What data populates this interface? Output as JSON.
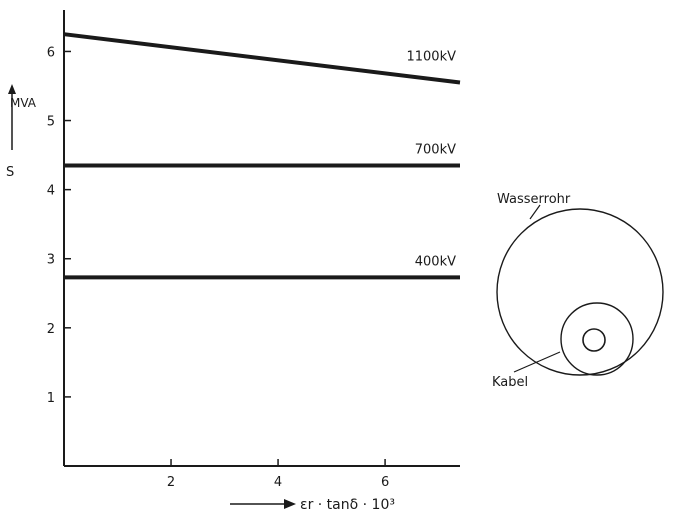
{
  "chart_data": {
    "type": "line",
    "title": "",
    "ylabel": "S",
    "yunit": "MVA",
    "xlabel": "εr · tanδ · 10³",
    "xlim": [
      0,
      7.4
    ],
    "ylim": [
      0,
      6.6
    ],
    "xticks": [
      2,
      4,
      6
    ],
    "yticks": [
      1,
      2,
      3,
      4,
      5,
      6
    ],
    "grid": false,
    "series": [
      {
        "name": "1100kV",
        "x": [
          0,
          7.4
        ],
        "y": [
          6.25,
          5.55
        ]
      },
      {
        "name": "700kV",
        "x": [
          0,
          7.4
        ],
        "y": [
          4.35,
          4.35
        ]
      },
      {
        "name": "400kV",
        "x": [
          0,
          7.4
        ],
        "y": [
          2.73,
          2.73
        ]
      }
    ]
  },
  "sketch": {
    "outer_label": "Wasserrohr",
    "inner_label": "Kabel"
  },
  "colors": {
    "ink": "#1a1a1a",
    "background": "#ffffff"
  }
}
